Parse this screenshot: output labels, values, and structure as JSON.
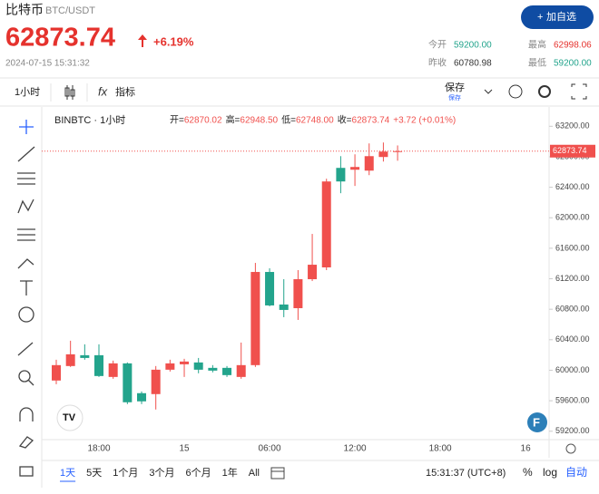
{
  "header": {
    "title": "比特币",
    "pair": "BTC/USDT",
    "price": "62873.74",
    "change": "+6.19%",
    "timestamp": "2024-07-15 15:31:32",
    "button": "加自选",
    "stats": [
      {
        "label": "今开",
        "value": "59200.00"
      },
      {
        "label": "最高",
        "value": "62998.06"
      },
      {
        "label": "昨收",
        "value": "60780.98"
      },
      {
        "label": "最低",
        "value": "59200.00"
      }
    ]
  },
  "toolbar": {
    "interval": "1小时",
    "indicators": "指标",
    "save": "保存",
    "save_sub": "保存"
  },
  "legend": {
    "symbol": "BINBTC · 1小时",
    "open_label": "开=",
    "open": "62870.02",
    "high_label": "高=",
    "high": "62948.50",
    "low_label": "低=",
    "low": "62748.00",
    "close_label": "收=",
    "close": "62873.74",
    "change": "+3.72 (+0.01%)"
  },
  "chart_data": {
    "type": "candlestick",
    "up_color": "#f0504d",
    "down_color": "#23a48c",
    "open": [
      59865,
      60055,
      60197,
      60197,
      59912,
      60090,
      59699,
      59687,
      60007,
      60078,
      60102,
      60031,
      60031,
      59912,
      60067,
      61289,
      60862,
      60814,
      61194,
      61349,
      62654,
      62630,
      62618,
      62797,
      62870.02
    ],
    "high": [
      60138,
      60387,
      60340,
      60340,
      60126,
      60102,
      59722,
      60055,
      60138,
      60150,
      60161,
      60067,
      60055,
      60363,
      61408,
      61337,
      61194,
      61313,
      61788,
      62512,
      62808,
      62832,
      62975,
      62987,
      62948.5
    ],
    "low": [
      59817,
      60043,
      60138,
      59912,
      59888,
      59556,
      59556,
      59485,
      59983,
      59912,
      59960,
      59972,
      59912,
      59888,
      60043,
      60838,
      60696,
      60660,
      61170,
      61313,
      62322,
      62417,
      62559,
      62737,
      62748
    ],
    "close": [
      60067,
      60209,
      60161,
      59924,
      60090,
      59580,
      59592,
      60007,
      60090,
      60114,
      60007,
      59995,
      59936,
      60067,
      61289,
      60850,
      60791,
      61194,
      61384,
      62476,
      62476,
      62666,
      62808,
      62868,
      62873.74
    ],
    "last_price": 62873.74,
    "ylim": [
      59090,
      63370
    ],
    "yticks": [
      {
        "value": 59200,
        "label": "59200.00"
      },
      {
        "value": 59600,
        "label": "59600.00"
      },
      {
        "value": 60000,
        "label": "60000.00"
      },
      {
        "value": 60400,
        "label": "60400.00"
      },
      {
        "value": 60800,
        "label": "60800.00"
      },
      {
        "value": 61200,
        "label": "61200.00"
      },
      {
        "value": 61600,
        "label": "61600.00"
      },
      {
        "value": 62000,
        "label": "62000.00"
      },
      {
        "value": 62400,
        "label": "62400.00"
      },
      {
        "value": 62800,
        "label": "62800.00"
      },
      {
        "value": 63200,
        "label": "63200.00"
      }
    ],
    "xtick_labels": [
      "18:00",
      "15",
      "06:00",
      "12:00",
      "18:00",
      "16"
    ]
  },
  "footer": {
    "ranges": [
      "1天",
      "5天",
      "1个月",
      "3个月",
      "6个月",
      "1年",
      "All"
    ],
    "time": "15:31:37 (UTC+8)",
    "percent": "%",
    "log": "log",
    "auto": "自动"
  }
}
